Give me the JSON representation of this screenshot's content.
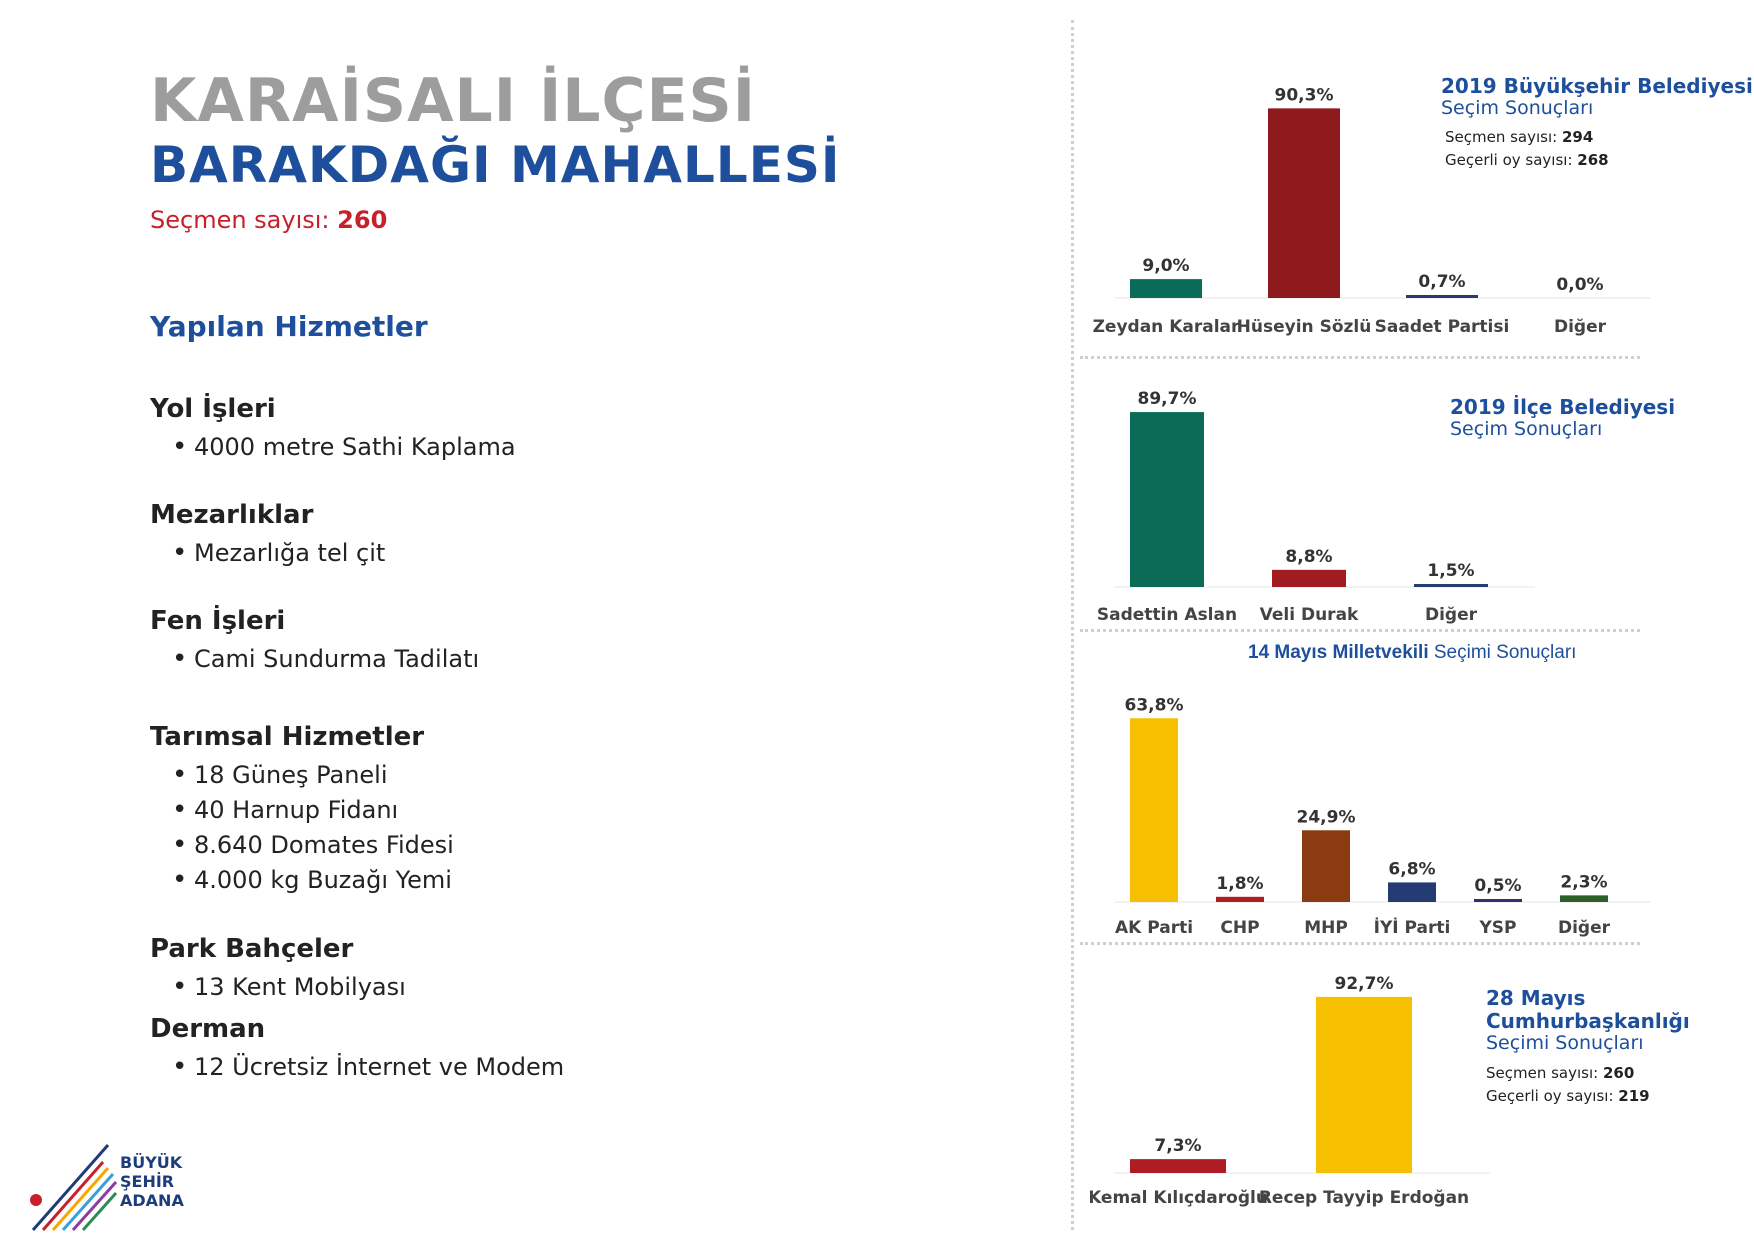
{
  "header": {
    "district": "KARAİSALI İLÇESİ",
    "neighborhood": "BARAKDAĞI MAHALLESİ",
    "voters_label": "Seçmen sayısı:",
    "voters_value": "260"
  },
  "services": {
    "heading": "Yapılan Hizmetler",
    "groups": [
      {
        "title": "Yol İşleri",
        "items": [
          "4000 metre Sathi Kaplama"
        ]
      },
      {
        "title": "Mezarlıklar",
        "items": [
          "Mezarlığa tel çit"
        ]
      },
      {
        "title": "Fen İşleri",
        "items": [
          "Cami Sundurma Tadilatı"
        ]
      },
      {
        "title": "Tarımsal Hizmetler",
        "items": [
          "18 Güneş Paneli",
          "40 Harnup Fidanı",
          "8.640 Domates Fidesi",
          "4.000 kg Buzağı Yemi"
        ]
      },
      {
        "title": "Park Bahçeler",
        "items": [
          "13 Kent Mobilyası"
        ]
      },
      {
        "title": "Derman",
        "items": [
          "12 Ücretsiz İnternet ve Modem"
        ]
      }
    ]
  },
  "logo": {
    "line1": "BÜYÜK",
    "line2": "ŞEHİR",
    "line3": "ADANA"
  },
  "legends": {
    "c1": {
      "title": "2019 Büyükşehir Belediyesi",
      "sub": "Seçim Sonuçları",
      "stat1_label": "Seçmen sayısı:",
      "stat1_value": "294",
      "stat2_label": "Geçerli oy sayısı:",
      "stat2_value": "268"
    },
    "c2": {
      "title": "2019 İlçe Belediyesi",
      "sub": "Seçim Sonuçları"
    },
    "c3": {
      "title": "14 Mayıs Milletvekili",
      "sub": "Seçimi Sonuçları"
    },
    "c4": {
      "title1": "28 Mayıs",
      "title2": "Cumhurbaşkanlığı",
      "sub": "Seçimi Sonuçları",
      "stat1_label": "Seçmen sayısı:",
      "stat1_value": "260",
      "stat2_label": "Geçerli oy sayısı:",
      "stat2_value": "219"
    }
  },
  "chart_data": [
    {
      "type": "bar",
      "title": "2019 Büyükşehir Belediyesi Seçim Sonuçları",
      "categories": [
        "Zeydan Karalar",
        "Hüseyin Sözlü",
        "Saadet Partisi",
        "Diğer"
      ],
      "values": [
        9.0,
        90.3,
        0.7,
        0.0
      ],
      "labels": [
        "9,0%",
        "90,3%",
        "0,7%",
        "0,0%"
      ],
      "colors": [
        "#0a6b57",
        "#8f1a1d",
        "#243b74",
        "#243b74"
      ]
    },
    {
      "type": "bar",
      "title": "2019 İlçe Belediyesi Seçim Sonuçları",
      "categories": [
        "Sadettin Aslan",
        "Veli Durak",
        "Diğer"
      ],
      "values": [
        89.7,
        8.8,
        1.5
      ],
      "labels": [
        "89,7%",
        "8,8%",
        "1,5%"
      ],
      "colors": [
        "#0a6b57",
        "#a01c20",
        "#243b74"
      ]
    },
    {
      "type": "bar",
      "title": "14 Mayıs Milletvekili Seçimi Sonuçları",
      "categories": [
        "AK Parti",
        "CHP",
        "MHP",
        "İYİ Parti",
        "YSP",
        "Diğer"
      ],
      "values": [
        63.8,
        1.8,
        24.9,
        6.8,
        0.5,
        2.3
      ],
      "labels": [
        "63,8%",
        "1,8%",
        "24,9%",
        "6,8%",
        "0,5%",
        "2,3%"
      ],
      "colors": [
        "#f6c000",
        "#b01c24",
        "#8b3a12",
        "#243b74",
        "#3b2a6e",
        "#2e5e2a"
      ]
    },
    {
      "type": "bar",
      "title": "28 Mayıs Cumhurbaşkanlığı Seçimi Sonuçları",
      "categories": [
        "Kemal Kılıçdaroğlu",
        "Recep Tayyip Erdoğan"
      ],
      "values": [
        7.3,
        92.7
      ],
      "labels": [
        "7,3%",
        "92,7%"
      ],
      "colors": [
        "#b01c24",
        "#f6c000"
      ]
    }
  ]
}
